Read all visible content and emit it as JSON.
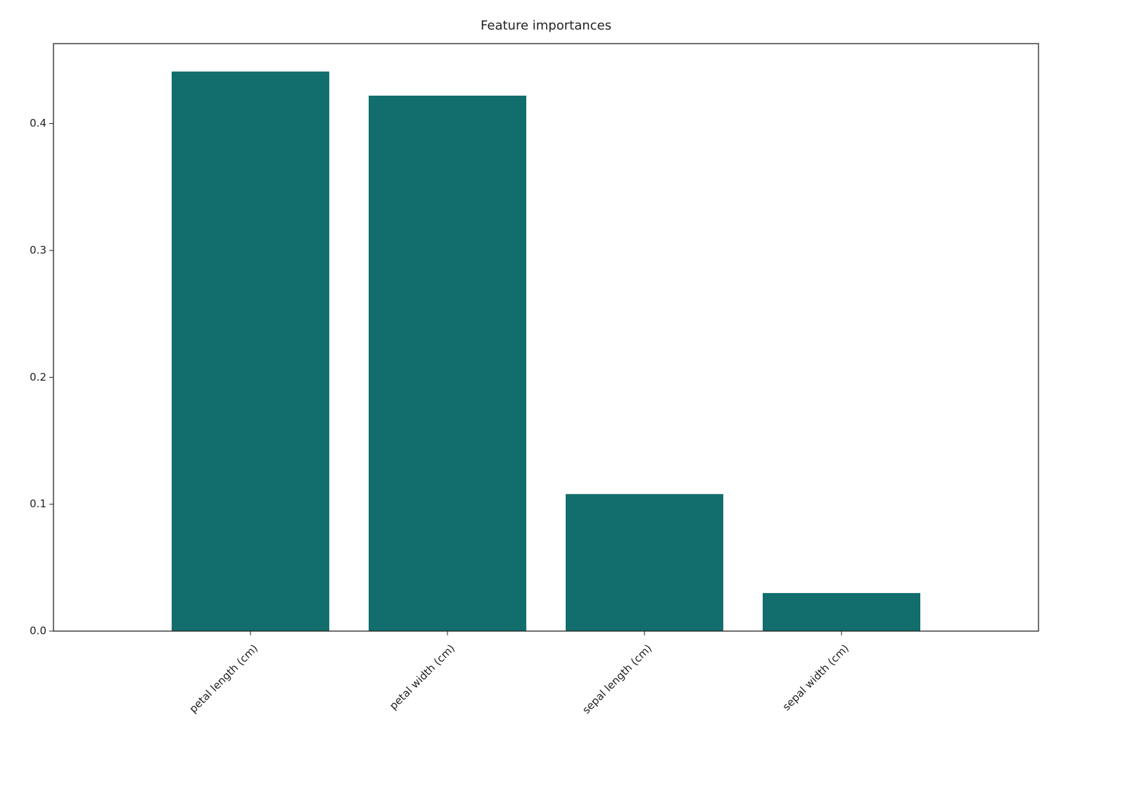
{
  "chart_data": {
    "type": "bar",
    "title": "Feature importances",
    "categories": [
      "petal length (cm)",
      "petal width (cm)",
      "sepal length (cm)",
      "sepal width (cm)"
    ],
    "values": [
      0.441,
      0.422,
      0.108,
      0.03
    ],
    "color": "#116e6c",
    "ylim": [
      0,
      0.463
    ],
    "yticks": [
      {
        "value": 0,
        "label": "0.0"
      },
      0.1,
      0.2,
      0.3,
      0.4
    ],
    "grid": false
  }
}
